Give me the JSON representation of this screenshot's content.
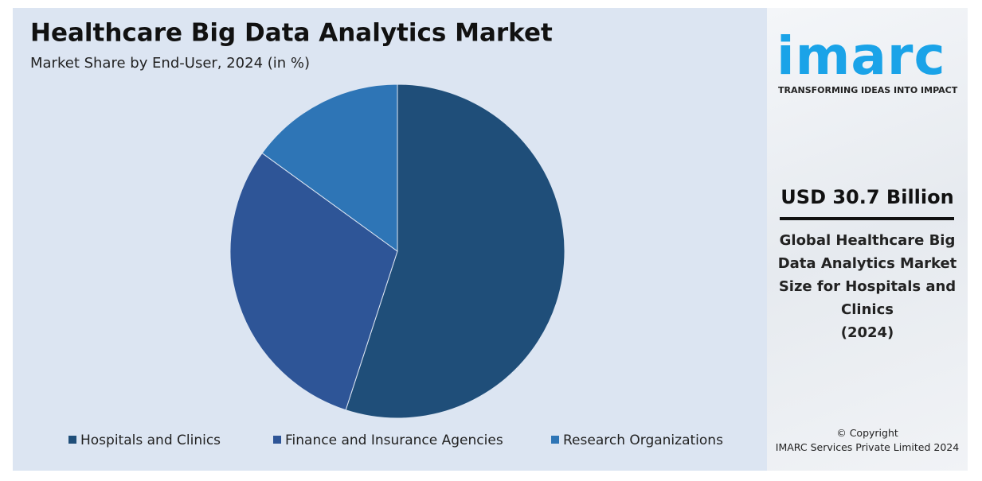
{
  "chart_data": {
    "type": "pie",
    "title": "Healthcare Big Data Analytics Market",
    "subtitle": "Market Share by End-User, 2024 (in %)",
    "categories": [
      "Hospitals and Clinics",
      "Finance and Insurance Agencies",
      "Research Organizations"
    ],
    "values": [
      55,
      30,
      15
    ],
    "colors": [
      "#1f4e79",
      "#2e5597",
      "#2e75b6"
    ]
  },
  "sidebar": {
    "logo": "imarc",
    "tagline": "TRANSFORMING IDEAS INTO IMPACT",
    "amount": "USD 30.7 Billion",
    "description": "Global Healthcare Big Data Analytics Market Size for Hospitals and Clinics",
    "year": "(2024)",
    "copyright": "© Copyright",
    "company": "IMARC Services Private Limited 2024"
  }
}
